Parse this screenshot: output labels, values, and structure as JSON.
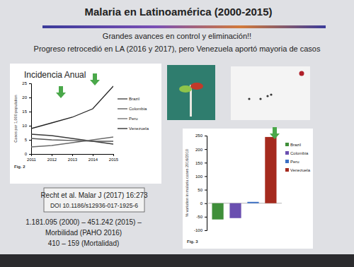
{
  "slide": {
    "title": "Malaria en Latinoamérica (2000-2015)",
    "subtitle": "Grandes avances en control y eliminación!!",
    "note": "Progreso retrocedió en LA (2016 y 2017), pero Venezuela aportó mayoria de casos",
    "citation": [
      "Recht et al. Malar J (2017) 16:273",
      "DOI 10.1186/s12936-017-1925-6"
    ],
    "stats": [
      "1.181.095 (2000) – 451.242 (2015) –",
      "Morbilidad (PAHO 2016)",
      "410 – 159 (Mortalidad)"
    ]
  },
  "chart_data": [
    {
      "type": "line",
      "title": "Incidencia Anual",
      "y_label": "Casos por 1,000 population",
      "annotations": [
        "Fig. 2"
      ],
      "x": [
        2011,
        2012,
        2013,
        2014,
        2015
      ],
      "xlim": [
        2011,
        2015
      ],
      "xticks": [
        2011,
        2012,
        2013,
        2014,
        2015
      ],
      "ylim": [
        0,
        25
      ],
      "yticks": [
        0,
        5,
        10,
        15,
        20,
        25
      ],
      "legend": "right",
      "series": [
        {
          "name": "Brazil",
          "color": "#3a3a3a",
          "values": [
            7,
            6.5,
            5.5,
            4.5,
            3.5
          ]
        },
        {
          "name": "Colombia",
          "color": "#555555",
          "values": [
            5.5,
            5,
            4.8,
            4.5,
            4.5
          ]
        },
        {
          "name": "Peru",
          "color": "#6a6a6a",
          "values": [
            2.5,
            3,
            4,
            5,
            6
          ]
        },
        {
          "name": "Venezuela",
          "color": "#222222",
          "values": [
            9,
            11,
            13,
            16,
            24
          ]
        }
      ]
    },
    {
      "type": "bar",
      "y_label": "% variation in malaria cases 2016/2010",
      "annotations": [
        "Fig. 3"
      ],
      "categories": [
        "Brazil",
        "Colombia",
        "Peru",
        "Venezuela"
      ],
      "values": [
        -60,
        -55,
        5,
        245
      ],
      "colors": [
        "#3f8f3a",
        "#6a4fb0",
        "#3a6fc4",
        "#a52a1e"
      ],
      "ylim": [
        -100,
        250
      ],
      "yticks": [
        -100,
        -50,
        0,
        50,
        100,
        150,
        200,
        250
      ],
      "legend": "right",
      "tick_labels": "y"
    }
  ]
}
